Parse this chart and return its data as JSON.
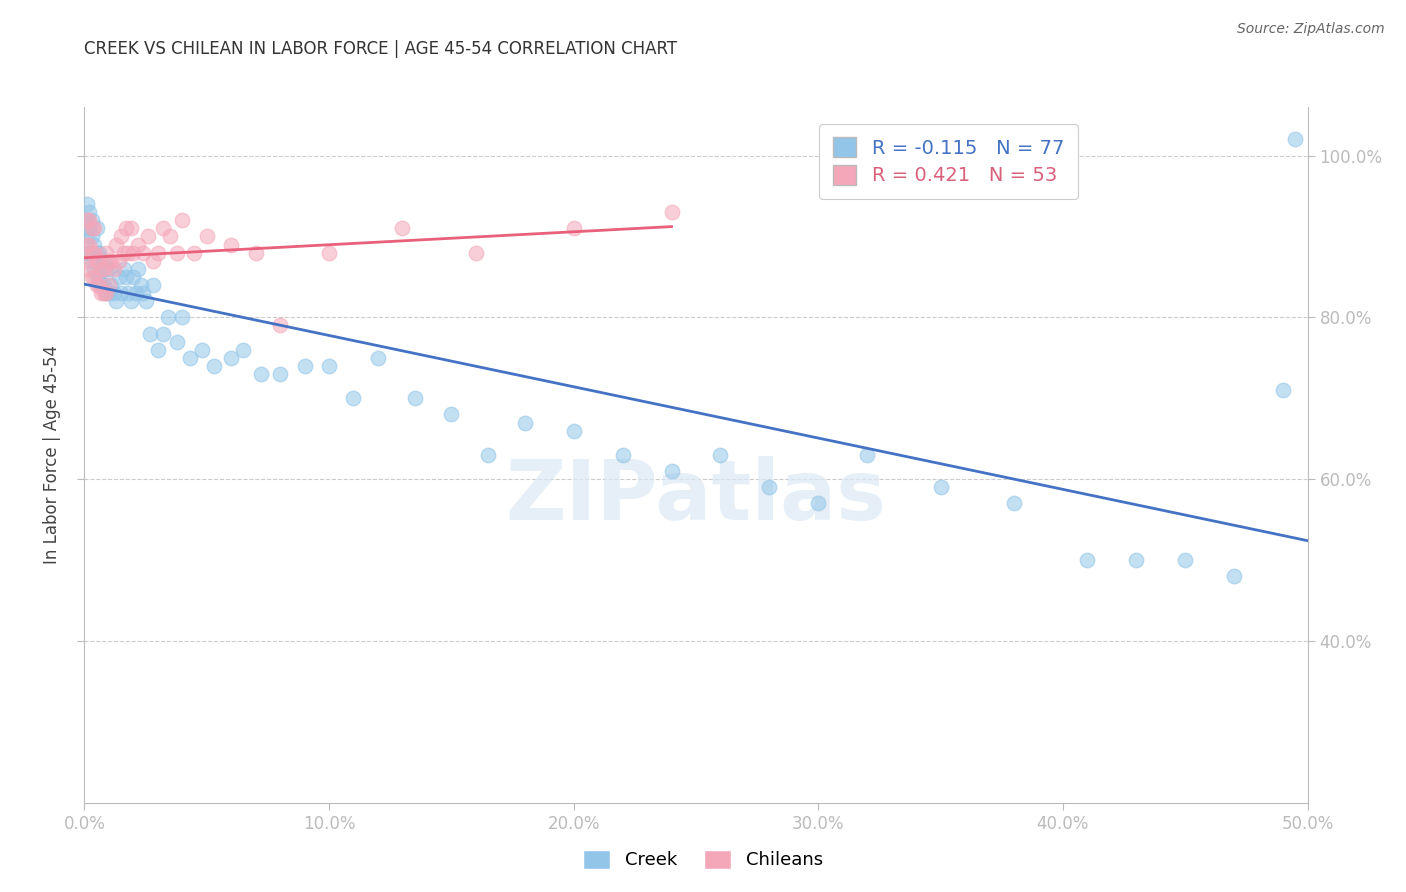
{
  "title": "CREEK VS CHILEAN IN LABOR FORCE | AGE 45-54 CORRELATION CHART",
  "source": "Source: ZipAtlas.com",
  "ylabel": "In Labor Force | Age 45-54",
  "xlim": [
    0.0,
    0.5
  ],
  "ylim": [
    0.2,
    1.06
  ],
  "ytick_vals": [
    0.4,
    0.6,
    0.8,
    1.0
  ],
  "xtick_vals": [
    0.0,
    0.1,
    0.2,
    0.3,
    0.4,
    0.5
  ],
  "creek_R": -0.115,
  "creek_N": 77,
  "chilean_R": 0.421,
  "chilean_N": 53,
  "creek_color": "#92c5e8",
  "chilean_color": "#f4a7b9",
  "creek_line_color": "#4472c4",
  "chilean_line_color": "#e8607a",
  "watermark": "ZIPatlas",
  "creek_x": [
    0.001,
    0.001,
    0.001,
    0.001,
    0.002,
    0.002,
    0.002,
    0.003,
    0.003,
    0.003,
    0.004,
    0.004,
    0.005,
    0.005,
    0.005,
    0.006,
    0.006,
    0.007,
    0.007,
    0.008,
    0.008,
    0.009,
    0.009,
    0.01,
    0.01,
    0.011,
    0.012,
    0.013,
    0.014,
    0.015,
    0.016,
    0.017,
    0.018,
    0.019,
    0.02,
    0.021,
    0.022,
    0.023,
    0.024,
    0.025,
    0.027,
    0.028,
    0.03,
    0.032,
    0.034,
    0.038,
    0.04,
    0.043,
    0.048,
    0.053,
    0.06,
    0.065,
    0.072,
    0.08,
    0.09,
    0.1,
    0.11,
    0.12,
    0.135,
    0.15,
    0.165,
    0.18,
    0.2,
    0.22,
    0.24,
    0.26,
    0.28,
    0.3,
    0.32,
    0.35,
    0.38,
    0.41,
    0.43,
    0.45,
    0.47,
    0.49,
    0.495
  ],
  "creek_y": [
    0.88,
    0.9,
    0.92,
    0.94,
    0.88,
    0.91,
    0.93,
    0.87,
    0.9,
    0.92,
    0.86,
    0.89,
    0.85,
    0.88,
    0.91,
    0.85,
    0.88,
    0.84,
    0.87,
    0.84,
    0.87,
    0.83,
    0.86,
    0.83,
    0.86,
    0.84,
    0.83,
    0.82,
    0.85,
    0.83,
    0.86,
    0.85,
    0.83,
    0.82,
    0.85,
    0.83,
    0.86,
    0.84,
    0.83,
    0.82,
    0.78,
    0.84,
    0.76,
    0.78,
    0.8,
    0.77,
    0.8,
    0.75,
    0.76,
    0.74,
    0.75,
    0.76,
    0.73,
    0.73,
    0.74,
    0.74,
    0.7,
    0.75,
    0.7,
    0.68,
    0.63,
    0.67,
    0.66,
    0.63,
    0.61,
    0.63,
    0.59,
    0.57,
    0.63,
    0.59,
    0.57,
    0.5,
    0.5,
    0.5,
    0.48,
    0.71,
    1.02
  ],
  "chilean_x": [
    0.001,
    0.001,
    0.001,
    0.002,
    0.002,
    0.002,
    0.003,
    0.003,
    0.003,
    0.004,
    0.004,
    0.004,
    0.005,
    0.005,
    0.006,
    0.006,
    0.007,
    0.007,
    0.008,
    0.008,
    0.009,
    0.009,
    0.01,
    0.01,
    0.011,
    0.012,
    0.013,
    0.014,
    0.015,
    0.016,
    0.017,
    0.018,
    0.019,
    0.02,
    0.022,
    0.024,
    0.026,
    0.028,
    0.03,
    0.032,
    0.035,
    0.038,
    0.04,
    0.045,
    0.05,
    0.06,
    0.07,
    0.08,
    0.1,
    0.13,
    0.16,
    0.2,
    0.24
  ],
  "chilean_y": [
    0.87,
    0.89,
    0.92,
    0.86,
    0.89,
    0.92,
    0.85,
    0.88,
    0.91,
    0.85,
    0.88,
    0.91,
    0.84,
    0.87,
    0.84,
    0.87,
    0.83,
    0.86,
    0.83,
    0.86,
    0.83,
    0.88,
    0.84,
    0.87,
    0.87,
    0.86,
    0.89,
    0.87,
    0.9,
    0.88,
    0.91,
    0.88,
    0.91,
    0.88,
    0.89,
    0.88,
    0.9,
    0.87,
    0.88,
    0.91,
    0.9,
    0.88,
    0.92,
    0.88,
    0.9,
    0.89,
    0.88,
    0.79,
    0.88,
    0.91,
    0.88,
    0.91,
    0.93
  ]
}
